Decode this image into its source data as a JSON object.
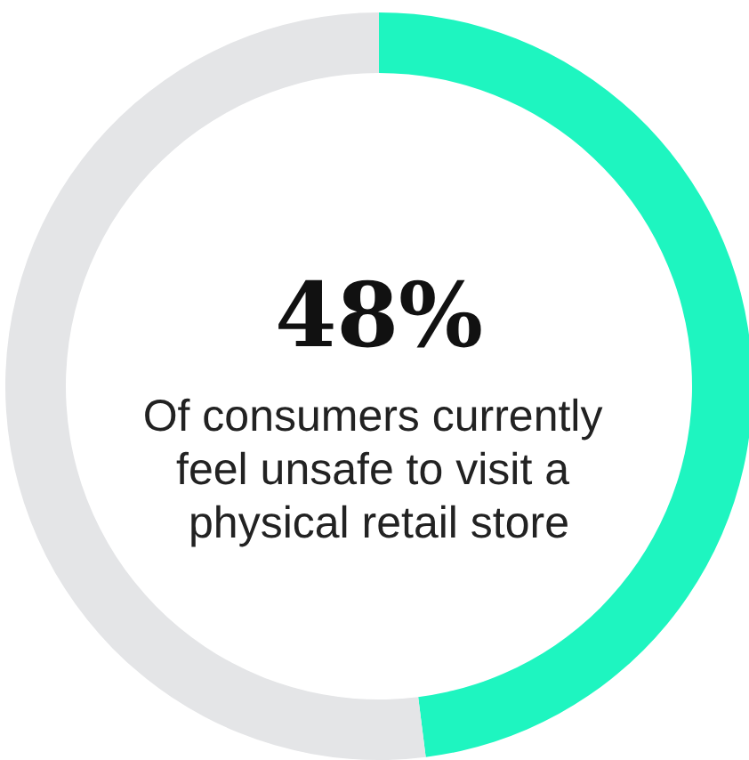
{
  "chart_data": {
    "type": "donut",
    "categories": [
      null,
      null
    ],
    "values": [
      48,
      52
    ],
    "colors": [
      "#1ef5c0",
      "#e4e5e7"
    ],
    "value_labels": [
      "48%",
      null
    ],
    "annotations": [
      "Of consumers currently feel unsafe to visit a physical retail store"
    ]
  }
}
